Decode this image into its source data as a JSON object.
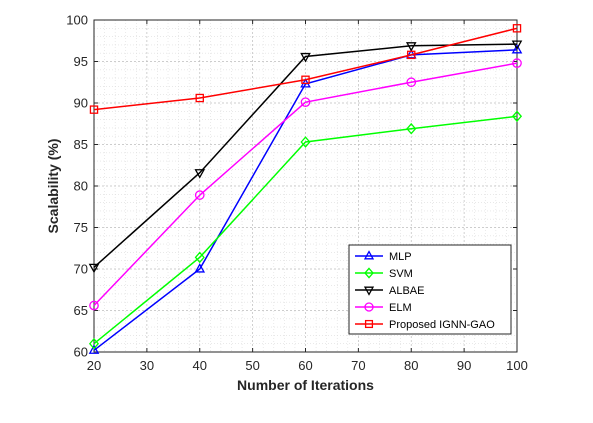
{
  "chart_data": {
    "type": "line",
    "xlabel": "Number of Iterations",
    "ylabel": "Scalability (%)",
    "xlim": [
      20,
      100
    ],
    "ylim": [
      60,
      100
    ],
    "x_ticks": [
      20,
      30,
      40,
      50,
      60,
      70,
      80,
      90,
      100
    ],
    "y_ticks": [
      60,
      65,
      70,
      75,
      80,
      85,
      90,
      95,
      100
    ],
    "grid": "on (major and minor, dotted)",
    "legend_position": "bottom-right",
    "x": [
      20,
      40,
      60,
      80,
      100
    ],
    "series": [
      {
        "name": "MLP",
        "color": "#0000ff",
        "marker": "triangle-up",
        "values": [
          60.2,
          70.0,
          92.3,
          95.8,
          96.4
        ]
      },
      {
        "name": "SVM",
        "color": "#00ff00",
        "marker": "diamond",
        "values": [
          61.0,
          71.4,
          85.3,
          86.9,
          88.4
        ]
      },
      {
        "name": "ALBAE",
        "color": "#000000",
        "marker": "triangle-down",
        "values": [
          70.2,
          81.6,
          95.6,
          96.9,
          97.1
        ]
      },
      {
        "name": "ELM",
        "color": "#ff00ff",
        "marker": "circle",
        "values": [
          65.6,
          78.9,
          90.1,
          92.5,
          94.8
        ]
      },
      {
        "name": "Proposed IGNN-GAO",
        "color": "#ff0000",
        "marker": "square",
        "values": [
          89.2,
          90.6,
          92.8,
          95.8,
          99.0
        ]
      }
    ]
  }
}
